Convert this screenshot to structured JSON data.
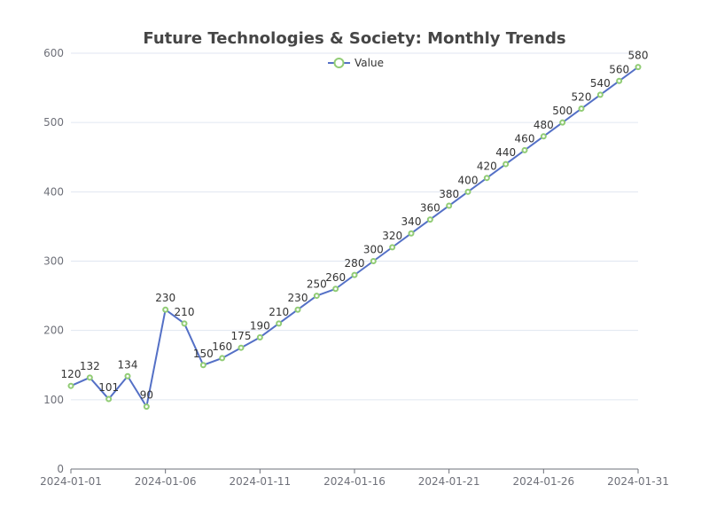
{
  "chart_data": {
    "type": "line",
    "title": "Future Technologies & Society: Monthly Trends",
    "xlabel": "",
    "ylabel": "",
    "x": [
      "2024-01-01",
      "2024-01-02",
      "2024-01-03",
      "2024-01-04",
      "2024-01-05",
      "2024-01-06",
      "2024-01-07",
      "2024-01-08",
      "2024-01-09",
      "2024-01-10",
      "2024-01-11",
      "2024-01-12",
      "2024-01-13",
      "2024-01-14",
      "2024-01-15",
      "2024-01-16",
      "2024-01-17",
      "2024-01-18",
      "2024-01-19",
      "2024-01-20",
      "2024-01-21",
      "2024-01-22",
      "2024-01-23",
      "2024-01-24",
      "2024-01-25",
      "2024-01-26",
      "2024-01-27",
      "2024-01-28",
      "2024-01-29",
      "2024-01-30",
      "2024-01-31"
    ],
    "x_ticks": [
      "2024-01-01",
      "2024-01-06",
      "2024-01-11",
      "2024-01-16",
      "2024-01-21",
      "2024-01-26",
      "2024-01-31"
    ],
    "ylim": [
      0,
      600
    ],
    "y_ticks": [
      0,
      100,
      200,
      300,
      400,
      500,
      600
    ],
    "grid": true,
    "legend_position": "top-center",
    "series": [
      {
        "name": "Value",
        "values": [
          120,
          132,
          101,
          134,
          90,
          230,
          210,
          150,
          160,
          175,
          190,
          210,
          230,
          250,
          260,
          280,
          300,
          320,
          340,
          360,
          380,
          400,
          420,
          440,
          460,
          480,
          500,
          520,
          540,
          560,
          580
        ],
        "line_color": "#5470c6",
        "marker_color": "#91cc75"
      }
    ]
  }
}
